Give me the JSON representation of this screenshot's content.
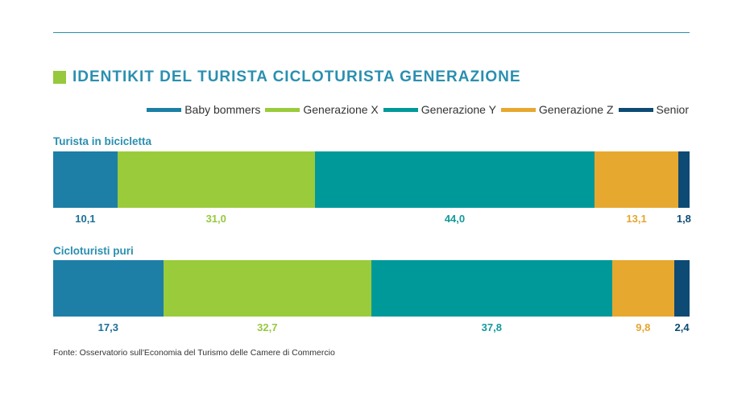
{
  "colors": {
    "accent": "#2a8fb0",
    "title_square": "#96c93d",
    "rule": "#2f8ea3"
  },
  "header": {
    "title": "IDENTIKIT DEL TURISTA CICLOTURISTA GENERAZIONE"
  },
  "footer": {
    "source": "Fonte: Osservatorio sull'Economia del Turismo delle Camere di Commercio"
  },
  "chart_data": {
    "type": "bar",
    "orientation": "horizontal-stacked",
    "legend_position": "top-right",
    "xlim": [
      0,
      100
    ],
    "series": [
      {
        "name": "Baby bommers",
        "color": "#1d7fa6",
        "text_color": "#1d6f98"
      },
      {
        "name": "Generazione X",
        "color": "#9acb3b",
        "text_color": "#96c93d"
      },
      {
        "name": "Generazione Y",
        "color": "#00999a",
        "text_color": "#14999b"
      },
      {
        "name": "Generazione Z",
        "color": "#e7a82f",
        "text_color": "#e5a52e"
      },
      {
        "name": "Senior",
        "color": "#0d4b74",
        "text_color": "#0d4b74"
      }
    ],
    "categories": [
      "Turista in bicicletta",
      "Cicloturisti puri"
    ],
    "values": [
      [
        10.1,
        31.0,
        44.0,
        13.1,
        1.8
      ],
      [
        17.3,
        32.7,
        37.8,
        9.8,
        2.4
      ]
    ],
    "value_labels": [
      [
        "10,1",
        "31,0",
        "44,0",
        "13,1",
        "1,8"
      ],
      [
        "17,3",
        "32,7",
        "37,8",
        "9,8",
        "2,4"
      ]
    ]
  }
}
